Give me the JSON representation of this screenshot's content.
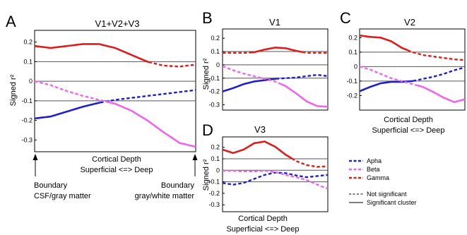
{
  "colors": {
    "alpha": "#1f1fcc",
    "beta": "#ee66ee",
    "gamma": "#dd1c1c",
    "refline": "#555555"
  },
  "chart_data": [
    {
      "type": "line",
      "panel": "A",
      "title": "V1+V2+V3",
      "xlabel": "Cortical Depth",
      "xlabel2": "Superficial <=> Deep",
      "ylabel": "Signed r²",
      "x": [
        0,
        0.1,
        0.2,
        0.3,
        0.4,
        0.5,
        0.6,
        0.7,
        0.8,
        0.9,
        1.0
      ],
      "xlim": [
        0,
        1
      ],
      "ylim": [
        -0.36,
        0.26
      ],
      "yticks": [
        0.2,
        0.1,
        0,
        -0.1,
        -0.2,
        -0.3
      ],
      "ytick_labels": [
        "0.2",
        "0.1",
        "0",
        "-0.1",
        "-0.2",
        "-0.3"
      ],
      "ref_lines": [
        0.1,
        0,
        -0.1
      ],
      "series": [
        {
          "key": "alpha",
          "values": [
            -0.19,
            -0.18,
            -0.155,
            -0.13,
            -0.11,
            -0.095,
            -0.085,
            -0.075,
            -0.065,
            -0.055,
            -0.045
          ],
          "sig_until": 0.4
        },
        {
          "key": "beta",
          "values": [
            0.0,
            -0.02,
            -0.05,
            -0.075,
            -0.095,
            -0.115,
            -0.15,
            -0.2,
            -0.26,
            -0.315,
            -0.335
          ],
          "sig_from": 0.45
        },
        {
          "key": "gamma",
          "values": [
            0.18,
            0.17,
            0.18,
            0.19,
            0.19,
            0.17,
            0.135,
            0.1,
            0.08,
            0.075,
            0.085
          ],
          "sig_until": 0.7
        }
      ],
      "annotations": {
        "left": [
          "Boundary",
          "CSF/gray matter"
        ],
        "right": [
          "Boundary",
          "gray/white matter"
        ]
      }
    },
    {
      "type": "line",
      "panel": "B",
      "title": "V1",
      "ylabel": "Signed r²",
      "x": [
        0,
        0.1,
        0.2,
        0.3,
        0.4,
        0.5,
        0.6,
        0.7,
        0.8,
        0.9,
        1.0
      ],
      "xlim": [
        0,
        1
      ],
      "ylim": [
        -0.34,
        0.27
      ],
      "yticks": [
        0.2,
        0.1,
        0,
        -0.1,
        -0.2,
        -0.3
      ],
      "ytick_labels": [
        "0.2",
        "0.1",
        "0",
        "-0.1",
        "-0.2",
        "-0.3"
      ],
      "ref_lines": [
        0.1,
        0,
        -0.1
      ],
      "series": [
        {
          "key": "alpha",
          "values": [
            -0.2,
            -0.175,
            -0.145,
            -0.125,
            -0.115,
            -0.105,
            -0.1,
            -0.095,
            -0.085,
            -0.075,
            -0.085
          ],
          "sig_until": 0.5
        },
        {
          "key": "beta",
          "values": [
            -0.01,
            -0.04,
            -0.065,
            -0.085,
            -0.105,
            -0.125,
            -0.16,
            -0.215,
            -0.275,
            -0.31,
            -0.315
          ],
          "sig_from": 0.55
        },
        {
          "key": "gamma",
          "values": [
            0.09,
            0.09,
            0.09,
            0.095,
            0.115,
            0.13,
            0.125,
            0.105,
            0.09,
            0.09,
            0.09
          ],
          "sig_from": 0.25,
          "sig_until": 0.75
        }
      ]
    },
    {
      "type": "line",
      "panel": "C",
      "title": "V2",
      "xlabel": "Cortical Depth",
      "xlabel2": "Superficial <=> Deep",
      "x": [
        0,
        0.1,
        0.2,
        0.3,
        0.4,
        0.5,
        0.6,
        0.7,
        0.8,
        0.9,
        1.0
      ],
      "xlim": [
        0,
        1
      ],
      "ylim": [
        -0.3,
        0.26
      ],
      "yticks": [
        0.2,
        0.1,
        0,
        -0.1,
        -0.2
      ],
      "ytick_labels": [
        "0.2",
        "0.1",
        "0",
        "-0.1",
        "-0.2"
      ],
      "ref_lines": [
        0.1,
        0,
        -0.1
      ],
      "series": [
        {
          "key": "alpha",
          "values": [
            -0.17,
            -0.14,
            -0.115,
            -0.105,
            -0.105,
            -0.1,
            -0.085,
            -0.07,
            -0.05,
            -0.025,
            -0.005
          ],
          "sig_until": 0.5
        },
        {
          "key": "beta",
          "values": [
            0.0,
            -0.02,
            -0.05,
            -0.08,
            -0.1,
            -0.12,
            -0.14,
            -0.175,
            -0.215,
            -0.245,
            -0.225
          ],
          "sig_from": 0.55
        },
        {
          "key": "gamma",
          "values": [
            0.215,
            0.205,
            0.2,
            0.175,
            0.13,
            0.1,
            0.08,
            0.07,
            0.06,
            0.05,
            0.045
          ],
          "sig_until": 0.45
        }
      ]
    },
    {
      "type": "line",
      "panel": "D",
      "title": "V3",
      "xlabel": "Cortical Depth",
      "xlabel2": "Superficial <=> Deep",
      "ylabel": "Signed r²",
      "x": [
        0,
        0.1,
        0.2,
        0.3,
        0.4,
        0.5,
        0.6,
        0.7,
        0.8,
        0.9,
        1.0
      ],
      "xlim": [
        0,
        1
      ],
      "ylim": [
        -0.36,
        0.29
      ],
      "yticks": [
        0.2,
        0.1,
        0,
        -0.1,
        -0.2,
        -0.3
      ],
      "ytick_labels": [
        "0.2",
        "0.1",
        "0",
        "-0.1",
        "-0.2",
        "-0.3"
      ],
      "ref_lines": [
        0.1,
        0,
        -0.1
      ],
      "series": [
        {
          "key": "alpha",
          "values": [
            -0.11,
            -0.125,
            -0.11,
            -0.075,
            -0.04,
            -0.02,
            -0.025,
            -0.045,
            -0.06,
            -0.05,
            -0.04
          ],
          "sig_until": -1
        },
        {
          "key": "beta",
          "values": [
            -0.005,
            -0.005,
            -0.01,
            -0.01,
            -0.005,
            -0.015,
            -0.04,
            -0.06,
            -0.085,
            -0.125,
            -0.16
          ],
          "sig_until": -1
        },
        {
          "key": "gamma",
          "values": [
            0.18,
            0.15,
            0.18,
            0.235,
            0.25,
            0.205,
            0.135,
            0.08,
            0.045,
            0.03,
            0.035
          ],
          "sig_until": 0.65
        }
      ]
    }
  ],
  "legend": {
    "items": [
      {
        "key": "alpha",
        "label": "Apha"
      },
      {
        "key": "beta",
        "label": "Beta"
      },
      {
        "key": "gamma",
        "label": "Gamma"
      }
    ],
    "not_sig_label": "Not significant",
    "sig_label": "Significant cluster"
  }
}
